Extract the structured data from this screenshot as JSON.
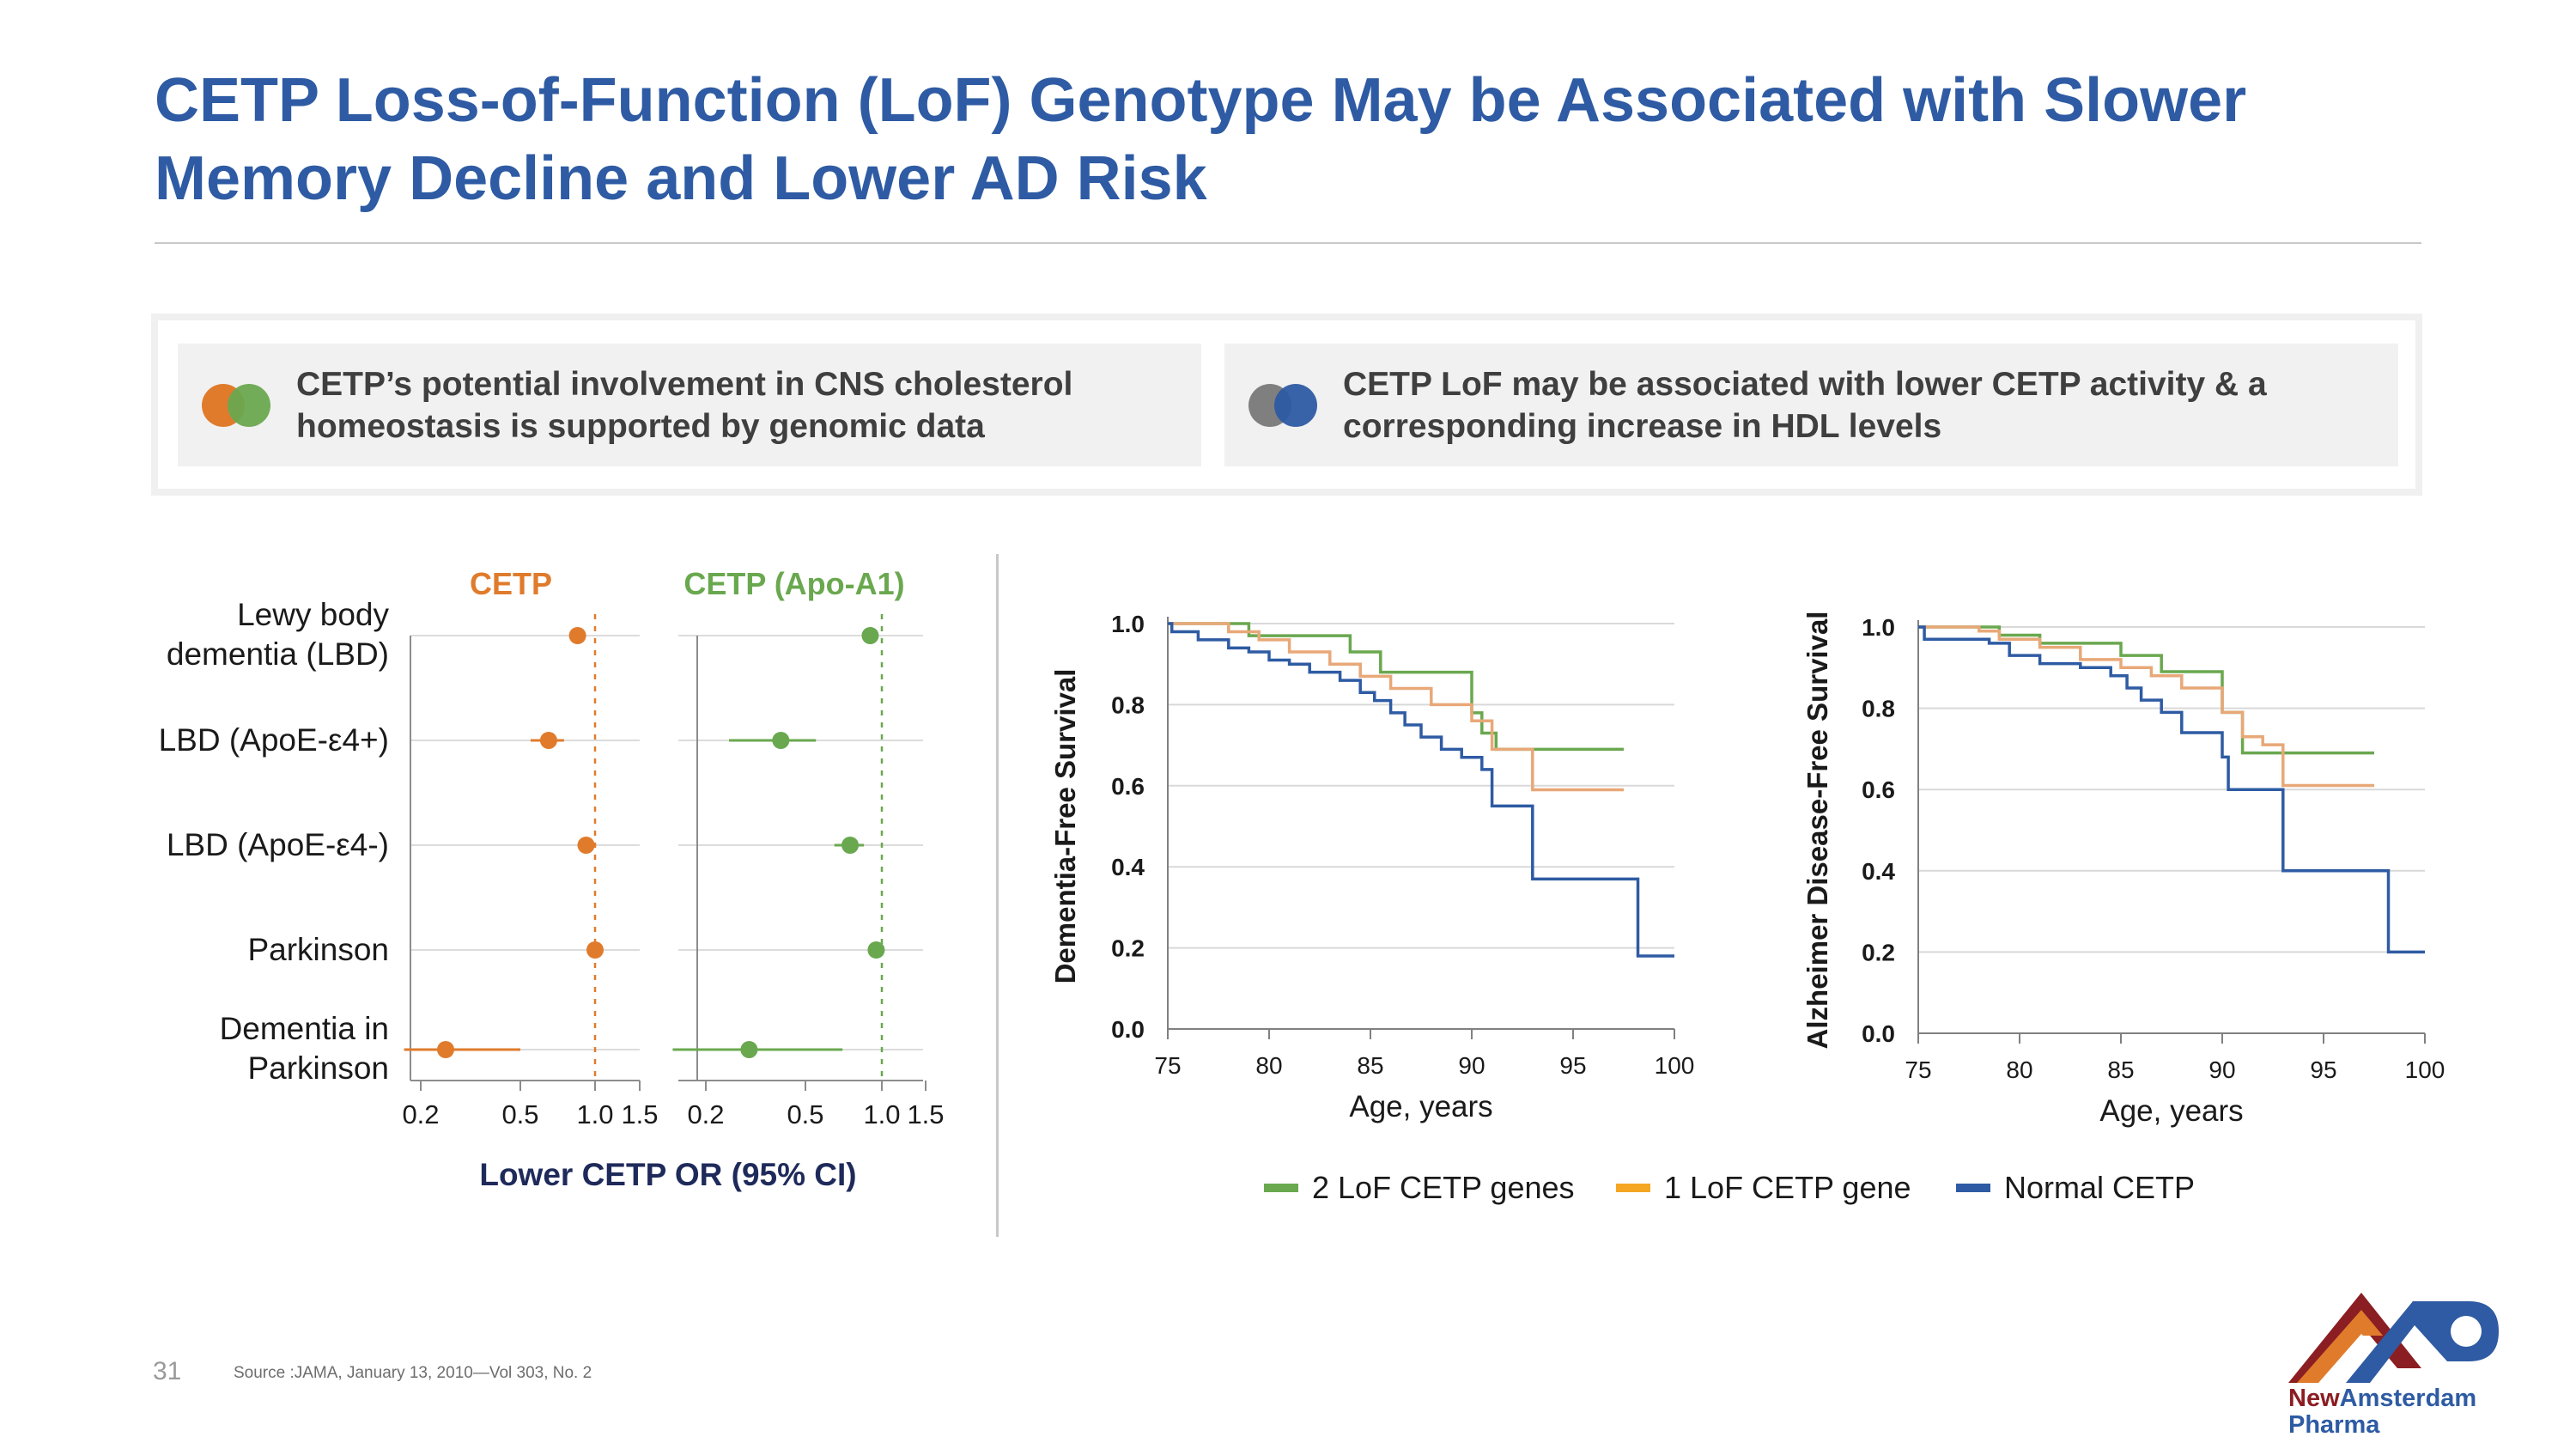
{
  "title": "CETP Loss-of-Function (LoF) Genotype May be Associated with Slower Memory Decline and Lower AD Risk",
  "callouts": [
    {
      "text": "CETP’s potential involvement in CNS cholesterol homeostasis is supported by genomic data",
      "dot_colors": [
        "#e07b2c",
        "#6aa84f"
      ]
    },
    {
      "text": "CETP LoF may be associated with lower CETP activity & a corresponding increase in HDL levels",
      "dot_colors": [
        "#7f7f7f",
        "#2e5ba3"
      ]
    }
  ],
  "chart_data": [
    {
      "type": "scatter",
      "subtype": "forest",
      "categories": [
        "Lewy body dementia (LBD)",
        "LBD (ApoE-ε4+)",
        "LBD (ApoE-ε4-)",
        "Parkinson",
        "Dementia in Parkinson"
      ],
      "panels": [
        {
          "title": "CETP",
          "color": "#e07b2c",
          "points": [
            {
              "or": 0.85,
              "lo": 0.8,
              "hi": 0.9
            },
            {
              "or": 0.65,
              "lo": 0.55,
              "hi": 0.75
            },
            {
              "or": 0.92,
              "lo": 0.85,
              "hi": 1.0
            },
            {
              "or": 1.0,
              "lo": 0.97,
              "hi": 1.03
            },
            {
              "or": 0.25,
              "lo": 0.17,
              "hi": 0.5
            }
          ],
          "ticks": [
            "0.2",
            "0.5",
            "1.0",
            "1.5"
          ]
        },
        {
          "title": "CETP (Apo-A1)",
          "color": "#6aa84f",
          "points": [
            {
              "or": 0.9,
              "lo": 0.86,
              "hi": 0.94
            },
            {
              "or": 0.4,
              "lo": 0.25,
              "hi": 0.55
            },
            {
              "or": 0.75,
              "lo": 0.65,
              "hi": 0.85
            },
            {
              "or": 0.95,
              "lo": 0.9,
              "hi": 1.0
            },
            {
              "or": 0.3,
              "lo": 0.15,
              "hi": 0.7
            }
          ],
          "ticks": [
            "0.2",
            "0.5",
            "1.0",
            "1.5"
          ]
        }
      ],
      "xlabel": "Lower CETP OR (95% CI)",
      "reference_line": 1.0,
      "xlim": [
        0.15,
        1.5
      ]
    },
    {
      "type": "line",
      "subtype": "kaplan-meier",
      "ylabel": "Dementia-Free Survival",
      "xlabel": "Age, years",
      "xlim": [
        75,
        100
      ],
      "ylim": [
        0,
        1
      ],
      "xticks": [
        "75",
        "80",
        "85",
        "90",
        "95",
        "100"
      ],
      "yticks": [
        "0.0",
        "0.2",
        "0.4",
        "0.6",
        "0.8",
        "1.0"
      ],
      "series": [
        {
          "name": "2 LoF CETP genes",
          "color": "#6aa84f",
          "x": [
            75,
            78.5,
            79,
            84,
            85.5,
            90,
            90.5,
            91.2,
            97.5
          ],
          "y": [
            1.0,
            1.0,
            0.97,
            0.93,
            0.88,
            0.78,
            0.73,
            0.69,
            0.69
          ]
        },
        {
          "name": "1 LoF CETP gene",
          "color": "#e8a878",
          "x": [
            75,
            78,
            79.5,
            81,
            83,
            84.5,
            86,
            88,
            90,
            91,
            93,
            97.5
          ],
          "y": [
            1.0,
            0.98,
            0.96,
            0.93,
            0.9,
            0.87,
            0.84,
            0.8,
            0.76,
            0.69,
            0.59,
            0.59
          ]
        },
        {
          "name": "Normal CETP",
          "color": "#2e5ba3",
          "x": [
            75,
            75.2,
            76.5,
            78,
            79,
            80,
            81,
            82,
            83.5,
            84.5,
            85.2,
            86,
            86.7,
            87.5,
            88.5,
            89.5,
            90.5,
            91,
            93,
            98.2,
            100
          ],
          "y": [
            1.0,
            0.98,
            0.96,
            0.94,
            0.93,
            0.91,
            0.9,
            0.88,
            0.86,
            0.83,
            0.81,
            0.78,
            0.75,
            0.72,
            0.69,
            0.67,
            0.64,
            0.55,
            0.37,
            0.18,
            0.18
          ]
        }
      ]
    },
    {
      "type": "line",
      "subtype": "kaplan-meier",
      "ylabel": "Alzheimer Disease-Free Survival",
      "xlabel": "Age, years",
      "xlim": [
        75,
        100
      ],
      "ylim": [
        0,
        1
      ],
      "xticks": [
        "75",
        "80",
        "85",
        "90",
        "95",
        "100"
      ],
      "yticks": [
        "0.0",
        "0.2",
        "0.4",
        "0.6",
        "0.8",
        "1.0"
      ],
      "series": [
        {
          "name": "2 LoF CETP genes",
          "color": "#6aa84f",
          "x": [
            75,
            78,
            79,
            81,
            85,
            87,
            90,
            91,
            97.5
          ],
          "y": [
            1.0,
            1.0,
            0.98,
            0.96,
            0.93,
            0.89,
            0.79,
            0.69,
            0.69
          ]
        },
        {
          "name": "1 LoF CETP gene",
          "color": "#e8a878",
          "x": [
            75,
            78,
            79,
            81,
            83,
            85,
            86.5,
            88,
            90,
            91,
            92,
            93,
            97.5
          ],
          "y": [
            1.0,
            0.99,
            0.97,
            0.95,
            0.92,
            0.9,
            0.88,
            0.85,
            0.79,
            0.73,
            0.71,
            0.61,
            0.61
          ]
        },
        {
          "name": "Normal CETP",
          "color": "#2e5ba3",
          "x": [
            75,
            75.3,
            78.5,
            79.5,
            81,
            83,
            84.5,
            85.3,
            86,
            87,
            88,
            90,
            90.3,
            93,
            98.2,
            100
          ],
          "y": [
            1.0,
            0.97,
            0.96,
            0.93,
            0.91,
            0.9,
            0.88,
            0.85,
            0.82,
            0.79,
            0.74,
            0.68,
            0.6,
            0.4,
            0.2,
            0.2
          ]
        }
      ],
      "legend_position": "bottom"
    }
  ],
  "footer": {
    "page_number": "31",
    "source": "Source :JAMA, January 13, 2010—Vol 303, No. 2"
  },
  "logo": {
    "name_part1": "New",
    "name_part2": "Amsterdam",
    "name_part3": "Pharma"
  }
}
